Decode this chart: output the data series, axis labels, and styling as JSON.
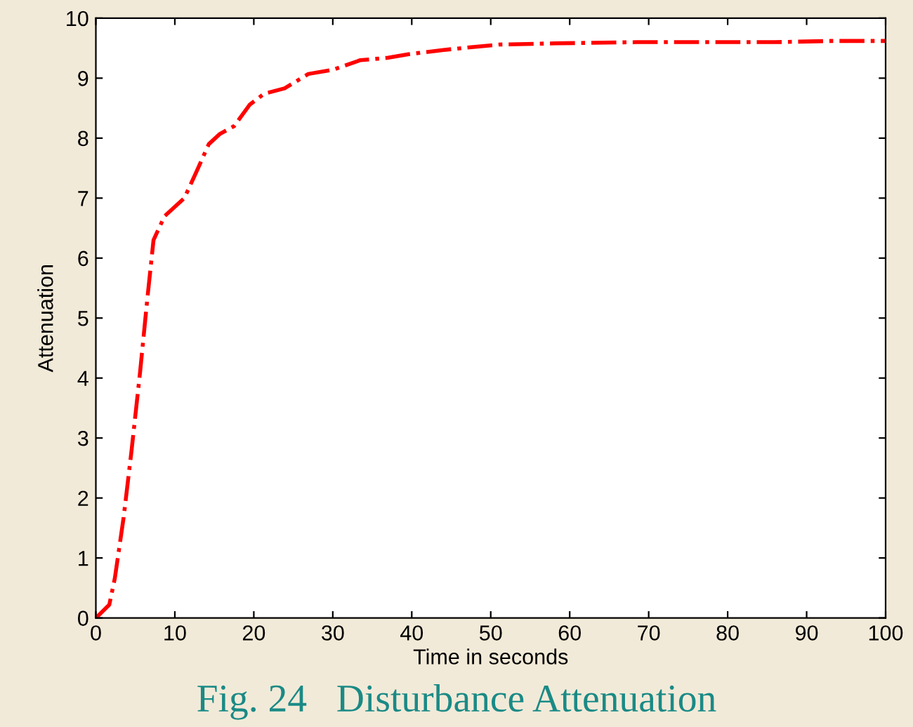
{
  "chart_data": {
    "type": "line",
    "xlabel": "Time in seconds",
    "ylabel": "Attenuation",
    "annotations": [
      "Fig. 24   Disturbance Attenuation"
    ],
    "x": [
      0,
      1.7,
      2.4,
      3.5,
      4.5,
      5.6,
      6.5,
      7.3,
      8.7,
      11.2,
      12.6,
      14.3,
      15.7,
      17.5,
      19.5,
      21.3,
      23.9,
      26.9,
      30,
      33.5,
      37,
      39.6,
      44,
      51,
      58,
      68.4,
      86,
      93,
      100
    ],
    "series": [
      {
        "color": "#ff0000",
        "values": [
          0,
          0.22,
          0.66,
          1.66,
          2.77,
          4.1,
          5.3,
          6.3,
          6.7,
          7.0,
          7.4,
          7.9,
          8.07,
          8.2,
          8.56,
          8.74,
          8.83,
          9.07,
          9.14,
          9.3,
          9.34,
          9.4,
          9.47,
          9.56,
          9.58,
          9.6,
          9.6,
          9.62,
          9.62
        ]
      }
    ],
    "xlim": [
      0,
      100
    ],
    "ylim": [
      0,
      10
    ],
    "xticks": [
      0,
      10,
      20,
      30,
      40,
      50,
      60,
      70,
      80,
      90,
      100
    ],
    "yticks": [
      0,
      1,
      2,
      3,
      4,
      5,
      6,
      7,
      8,
      9,
      10
    ],
    "grid": false,
    "legend": false,
    "marker": "none",
    "line_style": "dashdot"
  }
}
